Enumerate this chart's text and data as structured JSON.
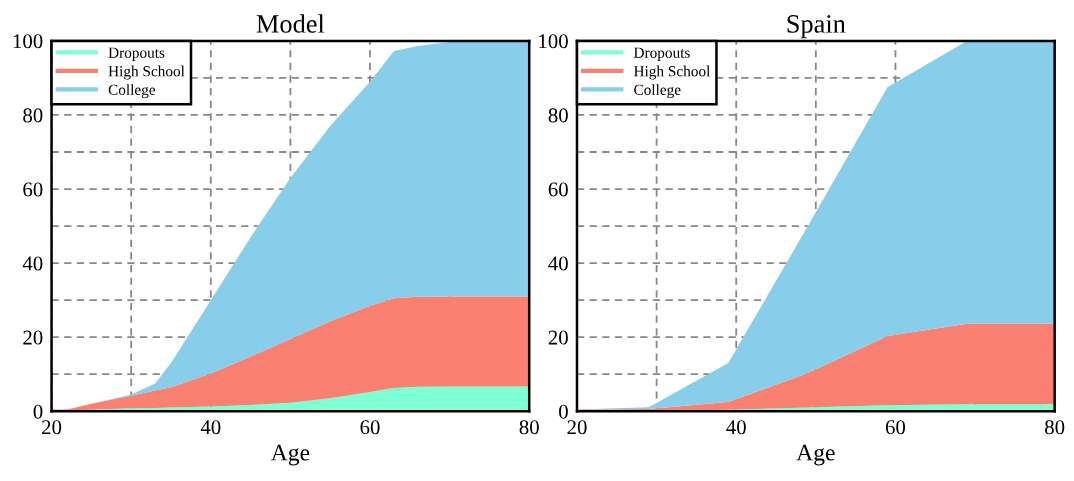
{
  "chart_data": [
    {
      "type": "area",
      "stacked": true,
      "title": "Model",
      "xlabel": "Age",
      "x": [
        20,
        22,
        25,
        30,
        33,
        35,
        40,
        45,
        50,
        55,
        60,
        63,
        66,
        70,
        75,
        80
      ],
      "series": [
        {
          "name": "Dropouts",
          "color": "#7fffd4",
          "values": [
            0,
            0,
            0.4,
            0.8,
            0.9,
            1,
            1.3,
            1.7,
            2.3,
            3.5,
            5.2,
            6.3,
            6.6,
            6.7,
            6.7,
            6.7
          ]
        },
        {
          "name": "High School",
          "color": "#fa8072",
          "values": [
            0.5,
            0.5,
            1.6,
            3.4,
            4.7,
            5.5,
            8.9,
            13.1,
            17.2,
            20.8,
            23.3,
            24.2,
            24.3,
            24.3,
            24.3,
            24.3
          ]
        },
        {
          "name": "College",
          "color": "#87ceeb",
          "values": [
            0,
            0,
            0,
            0.3,
            1.9,
            6.5,
            19.8,
            32.2,
            43.5,
            52.7,
            60.5,
            66.8,
            67.7,
            68.7,
            69,
            69
          ]
        }
      ],
      "xlim": [
        20,
        80
      ],
      "ylim": [
        0,
        100
      ],
      "xticks": [
        20,
        {
          "value": 30,
          "label": null
        },
        40,
        {
          "value": 50,
          "label": null
        },
        60,
        {
          "value": 70,
          "label": null
        },
        80
      ],
      "yticks": [
        0,
        {
          "value": 10,
          "label": null
        },
        20,
        {
          "value": 30,
          "label": null
        },
        40,
        {
          "value": 50,
          "label": null
        },
        60,
        {
          "value": 70,
          "label": null
        },
        80,
        {
          "value": 90,
          "label": null
        },
        100
      ],
      "grid": true,
      "legend": "top left"
    },
    {
      "type": "area",
      "stacked": true,
      "title": "Spain",
      "xlabel": "Age",
      "x": [
        20,
        29,
        39,
        49,
        59,
        69,
        80
      ],
      "series": [
        {
          "name": "Dropouts",
          "color": "#7fffd4",
          "values": [
            0,
            0.1,
            0.4,
            1,
            1.6,
            1.9,
            1.9
          ]
        },
        {
          "name": "High School",
          "color": "#fa8072",
          "values": [
            0.5,
            0.5,
            2.1,
            9.3,
            18.7,
            21.7,
            21.7
          ]
        },
        {
          "name": "College",
          "color": "#87ceeb",
          "values": [
            0,
            0.5,
            10.5,
            39.7,
            67.2,
            76.4,
            76.4
          ]
        }
      ],
      "xlim": [
        20,
        80
      ],
      "ylim": [
        0,
        100
      ],
      "xticks": [
        20,
        {
          "value": 30,
          "label": null
        },
        40,
        {
          "value": 50,
          "label": null
        },
        60,
        {
          "value": 70,
          "label": null
        },
        80
      ],
      "yticks": [
        0,
        {
          "value": 10,
          "label": null
        },
        20,
        {
          "value": 30,
          "label": null
        },
        40,
        {
          "value": 50,
          "label": null
        },
        60,
        {
          "value": 70,
          "label": null
        },
        80,
        {
          "value": 90,
          "label": null
        },
        100
      ],
      "grid": true,
      "legend": "top left"
    }
  ]
}
